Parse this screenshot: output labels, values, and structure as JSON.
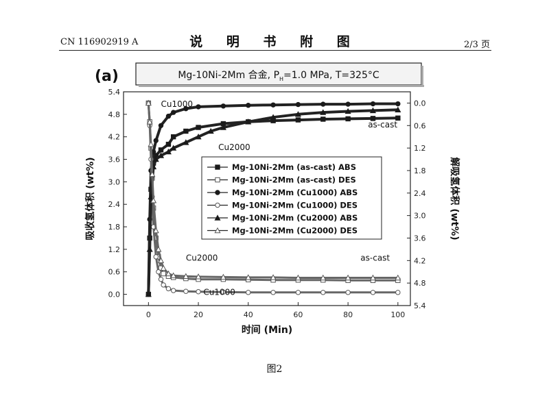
{
  "header": {
    "doc_number": "CN 116902919 A",
    "title": "说 明 书 附 图",
    "page": "2/3 页"
  },
  "figure": {
    "caption": "图2"
  },
  "chart_data": {
    "type": "line",
    "panel_label": "(a)",
    "title": "Mg-10Ni-2Mm 合金, P",
    "title_sub": "H",
    "title_rest": "=1.0 MPa, T=325°C",
    "xlabel": "时间 (Min)",
    "ylabel": "吸收氢体积 (wt%)",
    "y2label": "解吸氢体积 (wt%)",
    "xlim": [
      -10,
      105
    ],
    "ylim": [
      -0.3,
      5.4
    ],
    "y2lim": [
      -0.3,
      5.4
    ],
    "x_ticks": [
      "0",
      "20",
      "40",
      "60",
      "80",
      "100"
    ],
    "x_tick_values": [
      0,
      20,
      40,
      60,
      80,
      100
    ],
    "y_ticks": [
      "0.0",
      "0.6",
      "1.2",
      "1.8",
      "2.4",
      "3.0",
      "3.6",
      "4.2",
      "4.8",
      "5.4"
    ],
    "y_tick_values": [
      0.0,
      0.6,
      1.2,
      1.8,
      2.4,
      3.0,
      3.6,
      4.2,
      4.8,
      5.4
    ],
    "y2_ticks": [
      "0.0",
      "0.6",
      "1.2",
      "1.8",
      "2.4",
      "3.0",
      "3.6",
      "4.2",
      "4.8",
      "5.4"
    ],
    "y2_tick_values": [
      0.0,
      0.6,
      1.2,
      1.8,
      2.4,
      3.0,
      3.6,
      4.2,
      4.8,
      5.4
    ],
    "legend_position": "center-right",
    "grid": false,
    "series": [
      {
        "name": "Mg-10Ni-2Mm (as-cast) ABS",
        "marker": "square-filled",
        "axis": "left",
        "x": [
          0,
          0.5,
          1,
          2,
          3,
          5,
          8,
          10,
          15,
          20,
          30,
          40,
          50,
          60,
          70,
          80,
          90,
          100
        ],
        "y": [
          0.0,
          1.5,
          2.8,
          3.5,
          3.7,
          3.85,
          4.0,
          4.2,
          4.35,
          4.45,
          4.55,
          4.6,
          4.63,
          4.65,
          4.67,
          4.68,
          4.69,
          4.7
        ]
      },
      {
        "name": "Mg-10Ni-2Mm (as-cast) DES",
        "marker": "square-open",
        "axis": "right",
        "x": [
          0,
          0.5,
          1,
          1.5,
          2,
          3,
          4,
          5,
          6,
          8,
          10,
          15,
          20,
          30,
          40,
          50,
          60,
          70,
          80,
          90,
          100
        ],
        "y": [
          0.0,
          0.5,
          1.2,
          2.0,
          2.8,
          3.6,
          4.1,
          4.4,
          4.55,
          4.62,
          4.65,
          4.68,
          4.7,
          4.7,
          4.71,
          4.72,
          4.72,
          4.72,
          4.73,
          4.73,
          4.73
        ]
      },
      {
        "name": "Mg-10Ni-2Mm (Cu1000) ABS",
        "marker": "circle-filled",
        "axis": "left",
        "x": [
          0,
          0.5,
          1,
          2,
          3,
          5,
          8,
          10,
          15,
          20,
          30,
          40,
          50,
          60,
          70,
          80,
          90,
          100
        ],
        "y": [
          0.0,
          2.0,
          3.3,
          3.8,
          4.1,
          4.5,
          4.75,
          4.85,
          4.95,
          5.0,
          5.02,
          5.04,
          5.05,
          5.06,
          5.07,
          5.07,
          5.08,
          5.08
        ]
      },
      {
        "name": "Mg-10Ni-2Mm (Cu1000) DES",
        "marker": "circle-open",
        "axis": "right",
        "x": [
          0,
          0.5,
          1,
          1.5,
          2,
          3,
          4,
          5,
          6,
          8,
          10,
          15,
          20,
          30,
          40,
          50,
          60,
          70,
          80,
          90,
          100
        ],
        "y": [
          0.0,
          0.6,
          1.5,
          2.5,
          3.3,
          4.1,
          4.5,
          4.7,
          4.85,
          4.95,
          5.0,
          5.02,
          5.03,
          5.04,
          5.05,
          5.05,
          5.05,
          5.05,
          5.05,
          5.05,
          5.05
        ]
      },
      {
        "name": "Mg-10Ni-2Mm (Cu2000) ABS",
        "marker": "triangle-filled",
        "axis": "left",
        "x": [
          0,
          0.5,
          1,
          2,
          3,
          5,
          8,
          10,
          15,
          20,
          25,
          30,
          40,
          50,
          60,
          70,
          80,
          90,
          100
        ],
        "y": [
          0.0,
          1.2,
          2.6,
          3.4,
          3.6,
          3.7,
          3.8,
          3.9,
          4.05,
          4.2,
          4.35,
          4.45,
          4.6,
          4.72,
          4.8,
          4.85,
          4.88,
          4.9,
          4.92
        ]
      },
      {
        "name": "Mg-10Ni-2Mm (Cu2000) DES",
        "marker": "triangle-open",
        "axis": "right",
        "x": [
          0,
          0.5,
          1,
          1.5,
          2,
          3,
          4,
          5,
          6,
          8,
          10,
          15,
          20,
          30,
          40,
          50,
          60,
          70,
          80,
          90,
          100
        ],
        "y": [
          0.0,
          0.5,
          1.1,
          1.9,
          2.6,
          3.4,
          3.9,
          4.2,
          4.4,
          4.55,
          4.6,
          4.62,
          4.63,
          4.64,
          4.65,
          4.65,
          4.66,
          4.66,
          4.66,
          4.66,
          4.66
        ]
      }
    ],
    "annotations": [
      {
        "text": "Cu1000",
        "x": 5,
        "y": 5.0
      },
      {
        "text": "as-cast",
        "x": 88,
        "y": 4.45
      },
      {
        "text": "Cu2000",
        "x": 28,
        "y": 3.85
      },
      {
        "text": "Cu2000",
        "x": 15,
        "y": 0.9
      },
      {
        "text": "as-cast",
        "x": 85,
        "y": 0.9
      },
      {
        "text": "Cu1000",
        "x": 22,
        "y": -0.02
      }
    ]
  }
}
